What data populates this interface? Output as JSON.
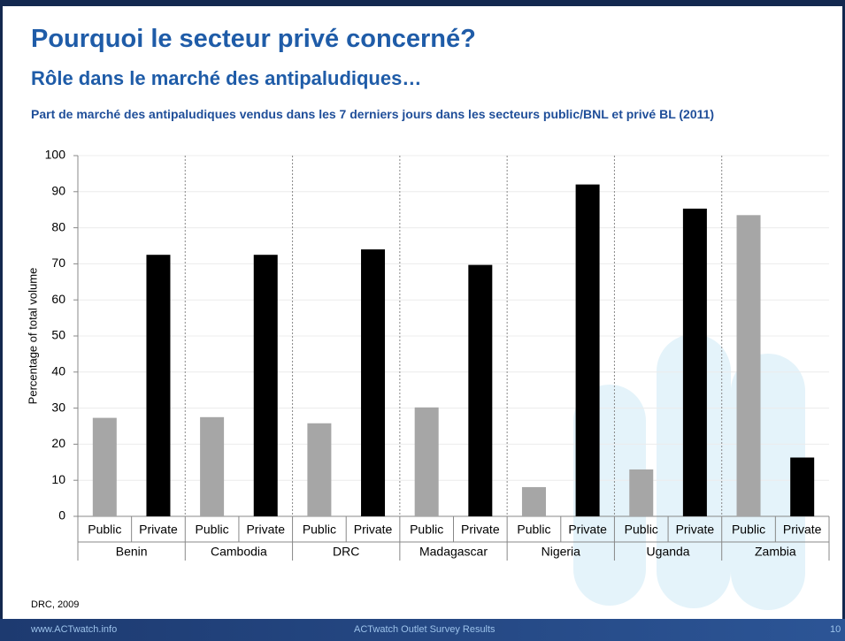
{
  "header": {
    "title": "Pourquoi le secteur privé concerné?",
    "subtitle": "Rôle dans le marché des antipaludiques…"
  },
  "chart_data": {
    "type": "bar",
    "title": "Part de marché des antipaludiques vendus dans les 7 derniers jours dans les secteurs public/BNL et privé BL (2011)",
    "ylabel": "Percentage of total volume",
    "groups": [
      "Benin",
      "Cambodia",
      "DRC",
      "Madagascar",
      "Nigeria",
      "Uganda",
      "Zambia"
    ],
    "categories": [
      "Public",
      "Private",
      "Public",
      "Private",
      "Public",
      "Private",
      "Public",
      "Private",
      "Public",
      "Private",
      "Public",
      "Private",
      "Public",
      "Private"
    ],
    "values": [
      27.3,
      72.5,
      27.5,
      72.5,
      25.8,
      74,
      30.2,
      69.7,
      8.1,
      92,
      13,
      85.3,
      83.5,
      16.3
    ],
    "colors": [
      "#a6a6a6",
      "#000000",
      "#a6a6a6",
      "#000000",
      "#a6a6a6",
      "#000000",
      "#a6a6a6",
      "#000000",
      "#a6a6a6",
      "#000000",
      "#a6a6a6",
      "#000000",
      "#a6a6a6",
      "#000000"
    ],
    "ylim": [
      0,
      100
    ],
    "yticks": [
      0,
      10,
      20,
      30,
      40,
      50,
      60,
      70,
      80,
      90,
      100
    ],
    "grid": true
  },
  "source": "DRC, 2009",
  "footer": {
    "left": "www.ACTwatch.info",
    "center": "ACTwatch Outlet Survey Results",
    "page": "10"
  }
}
